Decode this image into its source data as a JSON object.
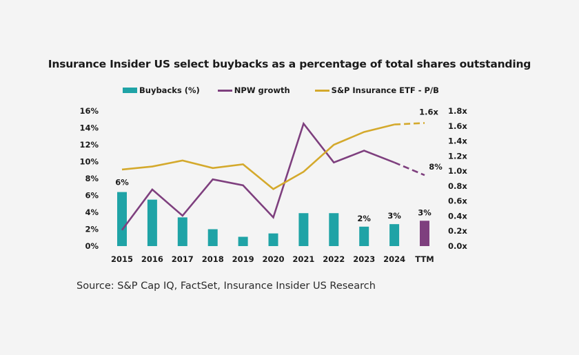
{
  "chart_data": {
    "type": "bar",
    "title": "Insurance Insider US select buybacks as a percentage of total shares outstanding",
    "categories": [
      "2015",
      "2016",
      "2017",
      "2018",
      "2019",
      "2020",
      "2021",
      "2022",
      "2023",
      "2024",
      "TTM"
    ],
    "series": [
      {
        "name": "Buybacks (%)",
        "type": "bar",
        "axis": "left",
        "color": "#1fa3a6",
        "highlight_color": "#7e3f7e",
        "highlight_index": 10,
        "values": [
          6.4,
          5.5,
          3.4,
          2.0,
          1.1,
          1.5,
          3.9,
          3.9,
          2.3,
          2.6,
          3.0
        ]
      },
      {
        "name": "NPW growth",
        "type": "line",
        "axis": "left",
        "color": "#7e3f7e",
        "dashed_from_index": 9,
        "values": [
          1.9,
          6.7,
          3.6,
          7.9,
          7.2,
          3.4,
          14.5,
          9.9,
          11.3,
          9.9,
          8.4
        ]
      },
      {
        "name": "S&P Insurance ETF - P/B",
        "type": "line",
        "axis": "right",
        "color": "#d4a92c",
        "dashed_from_index": 9,
        "values": [
          1.02,
          1.06,
          1.14,
          1.04,
          1.09,
          0.76,
          0.99,
          1.35,
          1.52,
          1.62,
          1.64
        ]
      }
    ],
    "left_axis": {
      "range": [
        0,
        16
      ],
      "ticks": [
        "0%",
        "2%",
        "4%",
        "6%",
        "8%",
        "10%",
        "12%",
        "14%",
        "16%"
      ],
      "tick_values": [
        0,
        2,
        4,
        6,
        8,
        10,
        12,
        14,
        16
      ]
    },
    "right_axis": {
      "range": [
        0,
        1.8
      ],
      "ticks": [
        "0.0x",
        "0.2x",
        "0.4x",
        "0.6x",
        "0.8x",
        "1.0x",
        "1.2x",
        "1.4x",
        "1.6x",
        "1.8x"
      ],
      "tick_values": [
        0,
        0.2,
        0.4,
        0.6,
        0.8,
        1.0,
        1.2,
        1.4,
        1.6,
        1.8
      ]
    },
    "data_labels": [
      {
        "series": 0,
        "index": 0,
        "text": "6%"
      },
      {
        "series": 0,
        "index": 8,
        "text": "2%"
      },
      {
        "series": 0,
        "index": 9,
        "text": "3%"
      },
      {
        "series": 0,
        "index": 10,
        "text": "3%"
      },
      {
        "series": 1,
        "index": 10,
        "text": "8%"
      },
      {
        "series": 2,
        "index": 10,
        "text": "1.6x"
      }
    ],
    "legend": [
      "Buybacks (%)",
      "NPW growth",
      "S&P Insurance ETF - P/B"
    ],
    "legend_position": "top-center",
    "grid": false
  },
  "source": "Source: S&P Cap IQ, FactSet, Insurance Insider US Research"
}
